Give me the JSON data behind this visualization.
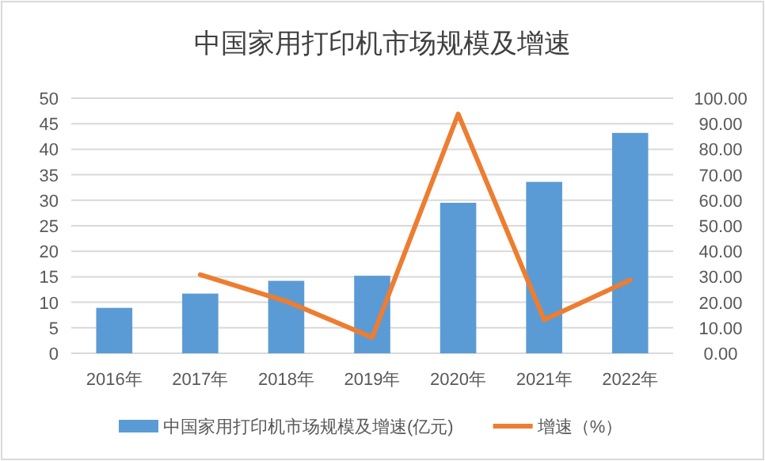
{
  "chart_data": {
    "type": "bar",
    "title": "中国家用打印机市场规模及增速",
    "categories": [
      "2016年",
      "2017年",
      "2018年",
      "2019年",
      "2020年",
      "2021年",
      "2022年"
    ],
    "series": [
      {
        "name": "中国家用打印机市场规模及增速(亿元)",
        "color": "#5b9bd5",
        "values": [
          8.9,
          11.7,
          14.2,
          15.2,
          29.5,
          33.6,
          43.2
        ]
      },
      {
        "name": "增速（%）",
        "type": "line",
        "axis": "y2",
        "color": "#ed7d31",
        "values": [
          null,
          30.8,
          20.4,
          6.2,
          93.8,
          13.1,
          28.7
        ]
      }
    ],
    "ylim": [
      0,
      50
    ],
    "yticks": [
      0,
      5,
      10,
      15,
      20,
      25,
      30,
      35,
      40,
      45,
      50
    ],
    "y2lim": [
      0,
      100
    ],
    "y2ticks": [
      {
        "value": 0,
        "label": "0.00"
      },
      {
        "value": 10,
        "label": "10.00"
      },
      {
        "value": 20,
        "label": "20.00"
      },
      {
        "value": 30,
        "label": "30.00"
      },
      {
        "value": 40,
        "label": "40.00"
      },
      {
        "value": 50,
        "label": "50.00"
      },
      {
        "value": 60,
        "label": "60.00"
      },
      {
        "value": 70,
        "label": "70.00"
      },
      {
        "value": 80,
        "label": "80.00"
      },
      {
        "value": 90,
        "label": "90.00"
      },
      {
        "value": 100,
        "label": "100.00"
      }
    ],
    "grid": "y",
    "legend": "bottom",
    "marker": "none",
    "line_style": "solid"
  }
}
